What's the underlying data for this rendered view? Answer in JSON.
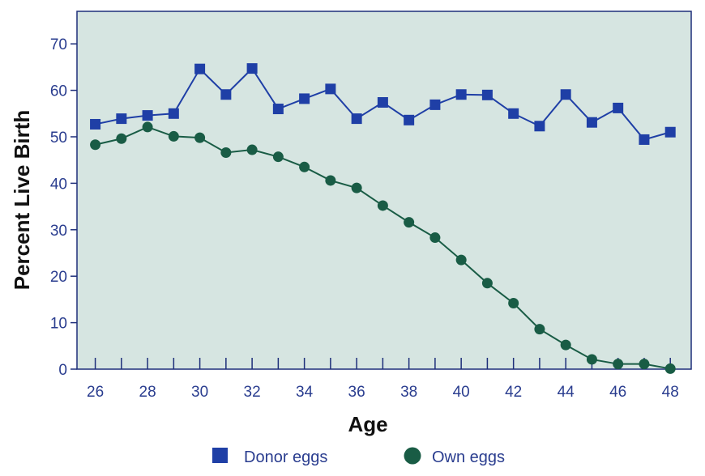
{
  "chart_data": {
    "type": "line",
    "title": "",
    "xlabel": "Age",
    "ylabel": "Percent Live Birth",
    "xlim": [
      25.3,
      48.8
    ],
    "ylim": [
      0,
      77
    ],
    "x_ticks": [
      26,
      28,
      30,
      32,
      34,
      36,
      38,
      40,
      42,
      44,
      46,
      48
    ],
    "y_ticks": [
      0,
      10,
      20,
      30,
      40,
      50,
      60,
      70
    ],
    "grid": false,
    "legend_position": "bottom",
    "x": [
      26,
      27,
      28,
      29,
      30,
      31,
      32,
      33,
      34,
      35,
      36,
      37,
      38,
      39,
      40,
      41,
      42,
      43,
      44,
      45,
      46,
      47,
      48
    ],
    "series": [
      {
        "name": "Donor eggs",
        "marker": "square",
        "color": "#1f3fa6",
        "values": [
          52.7,
          53.9,
          54.6,
          55.0,
          64.6,
          59.1,
          64.7,
          56.0,
          58.2,
          60.3,
          53.9,
          57.4,
          53.6,
          56.9,
          59.1,
          59.0,
          55.0,
          52.3,
          59.1,
          53.1,
          56.2,
          49.4,
          51.0
        ]
      },
      {
        "name": "Own eggs",
        "marker": "circle",
        "color": "#195c45",
        "values": [
          48.3,
          49.6,
          52.1,
          50.1,
          49.8,
          46.6,
          47.2,
          45.7,
          43.5,
          40.6,
          39.0,
          35.2,
          31.6,
          28.3,
          23.5,
          18.5,
          14.2,
          8.6,
          5.2,
          2.1,
          1.1,
          1.1,
          0.1
        ]
      }
    ]
  },
  "colors": {
    "plot_background": "#d6e5e1",
    "axis": "#1e2f7a",
    "tick_text": "#2a3d8f",
    "title_text": "#111111"
  }
}
